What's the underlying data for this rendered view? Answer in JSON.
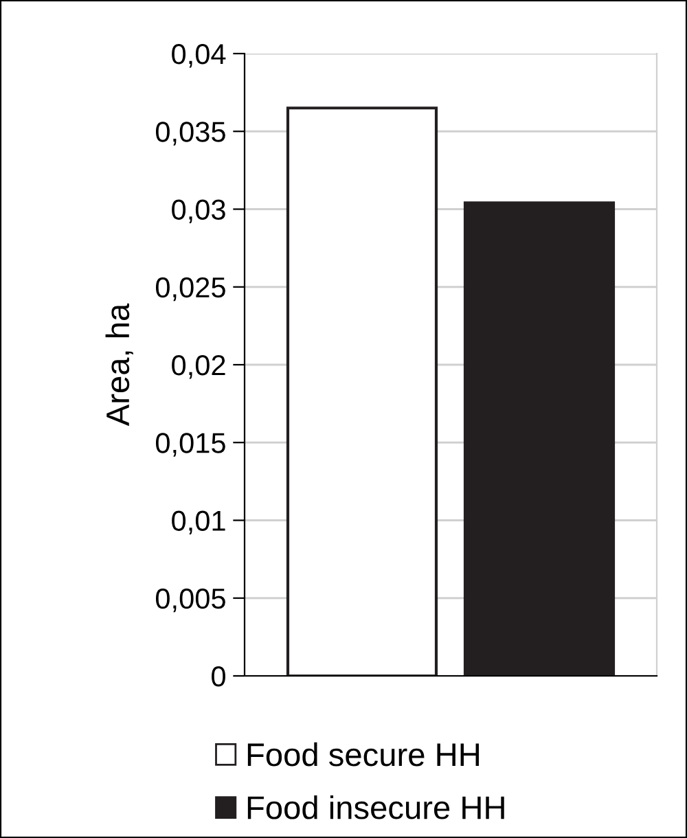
{
  "chart_data": {
    "type": "bar",
    "ylabel": "Area, ha",
    "categories": [
      null
    ],
    "series": [
      {
        "name": "Food secure HH",
        "color": "#ffffff",
        "values": [
          0.0365
        ]
      },
      {
        "name": "Food insecure HH",
        "color": "#231f20",
        "values": [
          0.0304
        ]
      }
    ],
    "ylim": [
      0,
      0.04
    ],
    "yticks": [
      0,
      {
        "value": 0.005,
        "label": "0,005"
      },
      {
        "value": 0.01,
        "label": "0,01"
      },
      {
        "value": 0.015,
        "label": "0,015"
      },
      {
        "value": 0.02,
        "label": "0,02"
      },
      {
        "value": 0.025,
        "label": "0,025"
      },
      {
        "value": 0.03,
        "label": "0,03"
      },
      {
        "value": 0.035,
        "label": "0,035"
      },
      {
        "value": 0.04,
        "label": "0,04"
      }
    ],
    "grid": "y",
    "legend": "bottom"
  }
}
